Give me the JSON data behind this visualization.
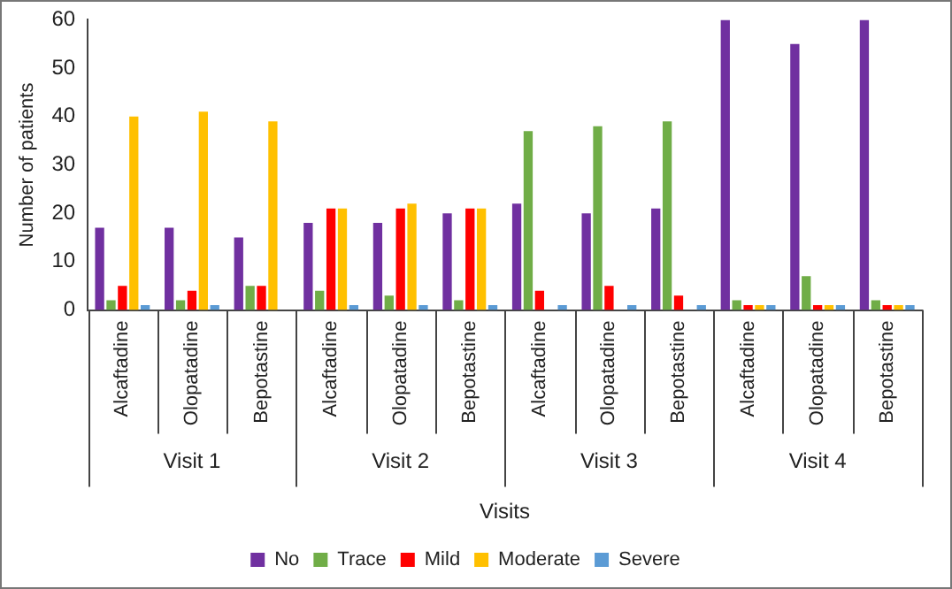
{
  "chart_data": {
    "type": "bar",
    "xlabel": "Visits",
    "ylabel": "Number of patients",
    "categories": [
      "Alcaftadine",
      "Olopatadine",
      "Bepotastine",
      "Alcaftadine",
      "Olopatadine",
      "Bepotastine",
      "Alcaftadine",
      "Olopatadine",
      "Bepotastine",
      "Alcaftadine",
      "Olopatadine",
      "Bepotastine"
    ],
    "annotations": [
      "Visit 1",
      "Visit 2",
      "Visit 3",
      "Visit 4"
    ],
    "series": [
      {
        "name": "No",
        "color": "#7030a0",
        "values": [
          17,
          17,
          15,
          18,
          18,
          20,
          22,
          20,
          21,
          60,
          55,
          60
        ]
      },
      {
        "name": "Trace",
        "color": "#70ad47",
        "values": [
          2,
          2,
          5,
          4,
          3,
          2,
          37,
          38,
          39,
          2,
          7,
          2
        ]
      },
      {
        "name": "Mild",
        "color": "#ff0000",
        "values": [
          5,
          4,
          5,
          21,
          21,
          21,
          4,
          5,
          3,
          1,
          1,
          1
        ]
      },
      {
        "name": "Moderate",
        "color": "#ffc000",
        "values": [
          40,
          41,
          39,
          21,
          22,
          21,
          0,
          0,
          0,
          1,
          1,
          1
        ]
      },
      {
        "name": "Severe",
        "color": "#5b9bd5",
        "values": [
          1,
          1,
          0,
          1,
          1,
          1,
          1,
          1,
          1,
          1,
          1,
          1
        ]
      }
    ],
    "ylim": [
      0,
      60
    ],
    "yticks": [
      0,
      10,
      20,
      30,
      40,
      50,
      60
    ],
    "grid": false,
    "legend": "bottom"
  }
}
